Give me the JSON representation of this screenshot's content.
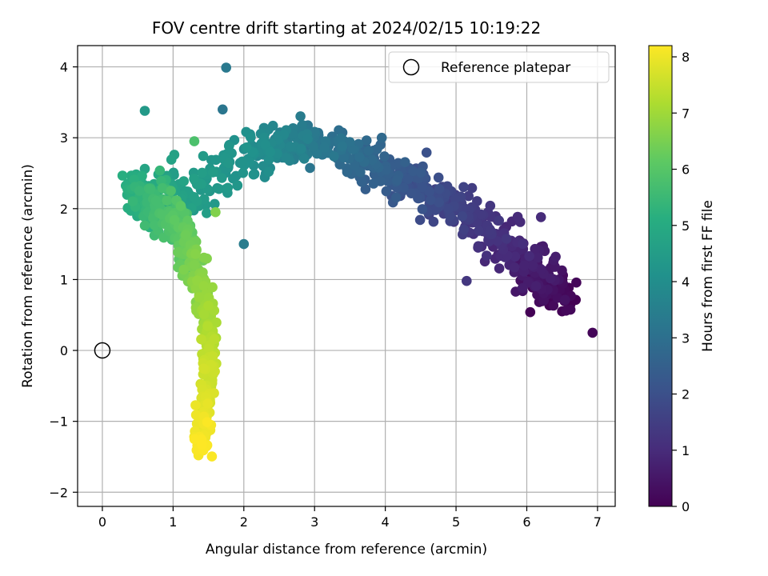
{
  "chart_data": {
    "type": "scatter",
    "title": "FOV centre drift starting at 2024/02/15 10:19:22",
    "xlabel": "Angular distance from reference (arcmin)",
    "ylabel": "Rotation from reference (arcmin)",
    "xlim": [
      -0.35,
      7.25
    ],
    "ylim": [
      -2.2,
      4.3
    ],
    "xticks": [
      0,
      1,
      2,
      3,
      4,
      5,
      6,
      7
    ],
    "yticks": [
      -2,
      -1,
      0,
      1,
      2,
      3,
      4
    ],
    "grid": true,
    "legend": {
      "placement": "top-right",
      "entries": [
        {
          "label": "Reference platepar",
          "marker": "open-circle"
        }
      ]
    },
    "reference_point": {
      "x": 0,
      "y": 0
    },
    "colorbar": {
      "label": "Hours from first FF file",
      "range": [
        0,
        8.2
      ],
      "ticks": [
        0,
        1,
        2,
        3,
        4,
        5,
        6,
        7,
        8
      ],
      "colormap": "viridis"
    },
    "track_hours": [
      0.0,
      0.5,
      1.0,
      1.5,
      2.0,
      2.5,
      3.0,
      3.5,
      4.0,
      4.5,
      5.0,
      5.5,
      6.0,
      6.5,
      7.0,
      7.5,
      8.2
    ],
    "track_x": [
      6.45,
      6.2,
      5.7,
      5.1,
      4.5,
      4.0,
      3.3,
      2.7,
      2.2,
      1.3,
      0.5,
      0.75,
      1.1,
      1.3,
      1.5,
      1.5,
      1.4
    ],
    "track_y": [
      0.75,
      1.05,
      1.55,
      1.95,
      2.3,
      2.55,
      2.85,
      2.95,
      2.8,
      2.3,
      2.2,
      2.05,
      1.7,
      1.2,
      0.5,
      -0.3,
      -1.4
    ],
    "track_spread_x": [
      0.35,
      0.3,
      0.3,
      0.3,
      0.3,
      0.3,
      0.3,
      0.25,
      0.25,
      0.25,
      0.2,
      0.2,
      0.15,
      0.12,
      0.1,
      0.1,
      0.12
    ],
    "track_spread_y": [
      0.3,
      0.3,
      0.3,
      0.25,
      0.25,
      0.25,
      0.25,
      0.25,
      0.3,
      0.4,
      0.35,
      0.35,
      0.3,
      0.3,
      0.3,
      0.3,
      0.3
    ],
    "n_points": 1200,
    "outliers": [
      {
        "x": 1.75,
        "y": 3.99,
        "hours": 3.3
      },
      {
        "x": 2.0,
        "y": 1.5,
        "hours": 3.4
      },
      {
        "x": 6.93,
        "y": 0.25,
        "hours": 0.1
      },
      {
        "x": 1.7,
        "y": 3.4,
        "hours": 3.2
      },
      {
        "x": 1.3,
        "y": 2.95,
        "hours": 5.8
      },
      {
        "x": 0.6,
        "y": 3.38,
        "hours": 4.4
      },
      {
        "x": 3.95,
        "y": 3.0,
        "hours": 2.8
      },
      {
        "x": 6.2,
        "y": 1.88,
        "hours": 1.0
      },
      {
        "x": 5.15,
        "y": 0.98,
        "hours": 1.3
      },
      {
        "x": 1.6,
        "y": 1.95,
        "hours": 6.6
      }
    ]
  }
}
